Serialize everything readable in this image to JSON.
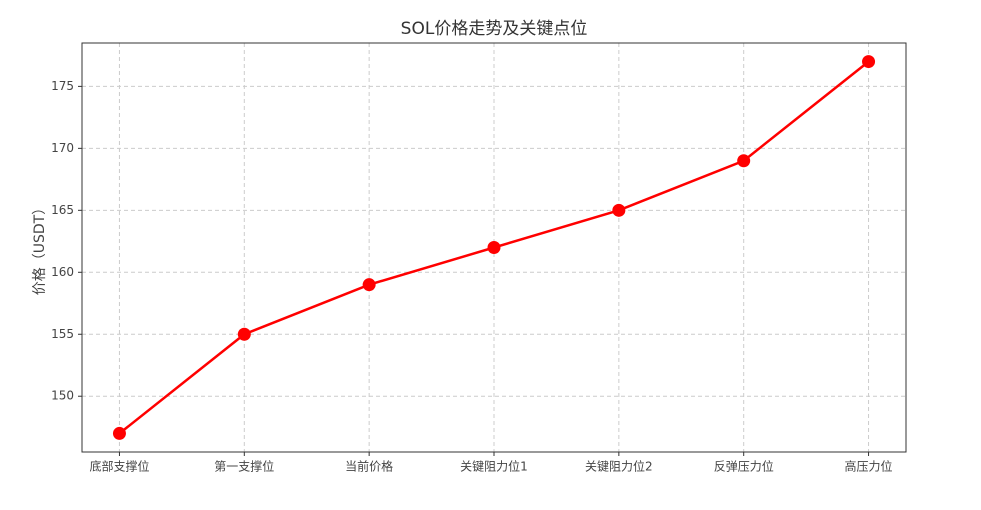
{
  "chart_data": {
    "type": "line",
    "title": "SOL价格走势及关键点位",
    "y_label": "价格（USDT）",
    "categories": [
      "底部支撑位",
      "第一支撑位",
      "当前价格",
      "关键阻力位1",
      "关键阻力位2",
      "反弹压力位",
      "高压力位"
    ],
    "series": [
      {
        "name": "SOL",
        "color": "#ff0000",
        "values": [
          147,
          155,
          159,
          162,
          165,
          169,
          177
        ]
      }
    ],
    "ylim": [
      145.5,
      178.5
    ],
    "yticks": [
      150,
      155,
      160,
      165,
      170,
      175
    ],
    "grid": true
  }
}
